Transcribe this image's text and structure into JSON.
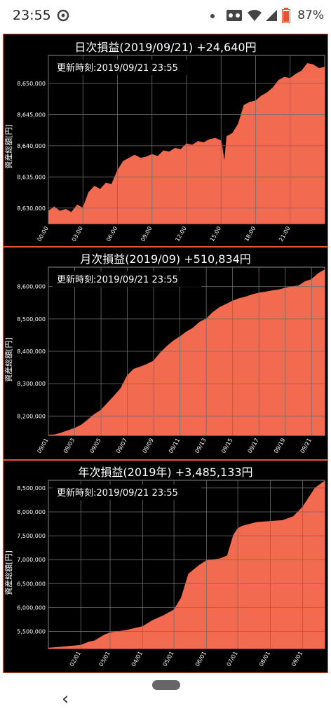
{
  "status_bar": {
    "time": "23:55",
    "battery": "87%",
    "icons": [
      "sync-icon",
      "dot-icon",
      "voicemail-icon",
      "wifi-icon",
      "signal-icon",
      "battery-icon"
    ]
  },
  "colors": {
    "fill": "#f26a4f",
    "background": "#000000",
    "grid": "#6f6f6f",
    "border": "#e8532f"
  },
  "chart_data": [
    {
      "type": "area",
      "title": "日次損益(2019/09/21) +24,640円",
      "subtitle": "更新時刻:2019/09/21 23:55",
      "ylabel": "資産総額[円]",
      "xlabel": "",
      "grid": true,
      "ylim": [
        8627500,
        8654500
      ],
      "yticks": [
        "8,630,000",
        "8,635,000",
        "8,640,000",
        "8,645,000",
        "8,650,000"
      ],
      "ytick_values": [
        8630000,
        8635000,
        8640000,
        8645000,
        8650000
      ],
      "xticks": [
        "00:00",
        "03:00",
        "06:00",
        "09:00",
        "12:00",
        "15:00",
        "18:00",
        "21:00"
      ],
      "x_range_hours": [
        0,
        24
      ],
      "x": [
        0,
        0.5,
        1,
        1.5,
        2,
        2.5,
        3,
        3.5,
        4,
        4.5,
        5,
        5.5,
        6,
        6.5,
        7,
        7.5,
        8,
        8.5,
        9,
        9.5,
        10,
        10.5,
        11,
        11.5,
        12,
        12.5,
        13,
        13.5,
        14,
        14.5,
        15,
        15.3,
        15.5,
        16,
        16.5,
        17,
        17.5,
        18,
        18.5,
        19,
        19.5,
        20,
        20.5,
        21,
        21.5,
        22,
        22.5,
        23,
        23.5,
        24
      ],
      "y": [
        8629500,
        8630200,
        8629500,
        8629800,
        8629300,
        8630500,
        8630000,
        8632500,
        8633500,
        8633000,
        8634000,
        8633800,
        8636000,
        8637500,
        8638000,
        8638500,
        8638000,
        8638200,
        8638600,
        8638300,
        8639200,
        8639000,
        8639600,
        8639400,
        8640300,
        8640100,
        8640700,
        8640500,
        8641000,
        8641200,
        8640800,
        8637200,
        8641500,
        8642000,
        8643500,
        8646500,
        8647000,
        8647200,
        8648000,
        8648500,
        8649300,
        8650500,
        8651000,
        8650800,
        8651500,
        8652000,
        8653200,
        8653000,
        8652400,
        8652600
      ]
    },
    {
      "type": "area",
      "title": "月次損益(2019/09) +510,834円",
      "subtitle": "更新時刻:2019/09/21 23:55",
      "ylabel": "資産総額[円]",
      "xlabel": "",
      "grid": true,
      "ylim": [
        8140000,
        8660000
      ],
      "yticks": [
        "8,200,000",
        "8,300,000",
        "8,400,000",
        "8,500,000",
        "8,600,000"
      ],
      "ytick_values": [
        8200000,
        8300000,
        8400000,
        8500000,
        8600000
      ],
      "xticks": [
        "09/01",
        "09/03",
        "09/05",
        "09/07",
        "09/09",
        "09/11",
        "09/13",
        "09/15",
        "09/17",
        "09/19",
        "09/21"
      ],
      "x_range_days": [
        1,
        22
      ],
      "x": [
        1,
        1.5,
        2,
        2.5,
        3,
        3.5,
        4,
        4.5,
        5,
        5.5,
        6,
        6.5,
        7,
        7.5,
        8,
        8.5,
        9,
        9.5,
        10,
        10.5,
        11,
        11.5,
        12,
        12.5,
        13,
        13.5,
        14,
        14.5,
        15,
        15.5,
        16,
        16.5,
        17,
        17.5,
        18,
        18.5,
        19,
        19.5,
        20,
        20.5,
        21,
        21.5,
        22
      ],
      "y": [
        8141000,
        8142000,
        8148000,
        8155000,
        8162000,
        8172000,
        8188000,
        8205000,
        8218000,
        8240000,
        8262000,
        8285000,
        8325000,
        8345000,
        8352000,
        8360000,
        8370000,
        8395000,
        8415000,
        8432000,
        8445000,
        8460000,
        8472000,
        8490000,
        8500000,
        8520000,
        8535000,
        8545000,
        8555000,
        8563000,
        8568000,
        8575000,
        8580000,
        8583000,
        8587000,
        8590000,
        8595000,
        8600000,
        8602000,
        8615000,
        8622000,
        8640000,
        8652000
      ]
    },
    {
      "type": "area",
      "title": "年次損益(2019年) +3,485,133円",
      "subtitle": "更新時刻:2019/09/21 23:55",
      "ylabel": "資産総額[円]",
      "xlabel": "",
      "grid": true,
      "ylim": [
        5140000,
        8660000
      ],
      "yticks": [
        "5,500,000",
        "6,000,000",
        "6,500,000",
        "7,000,000",
        "7,500,000",
        "8,000,000",
        "8,500,000"
      ],
      "ytick_values": [
        5500000,
        6000000,
        6500000,
        7000000,
        7500000,
        8000000,
        8500000
      ],
      "xticks": [
        "02/01",
        "03/01",
        "04/01",
        "05/01",
        "06/01",
        "07/01",
        "08/01",
        "09/01"
      ],
      "x_range_days": [
        1,
        265
      ],
      "x": [
        1,
        15,
        32,
        40,
        45,
        55,
        60,
        75,
        91,
        100,
        111,
        121,
        128,
        135,
        145,
        152,
        165,
        172,
        178,
        182,
        186,
        200,
        213,
        225,
        235,
        244,
        250,
        256,
        265
      ],
      "y": [
        5150000,
        5175000,
        5210000,
        5280000,
        5300000,
        5430000,
        5470000,
        5520000,
        5600000,
        5720000,
        5830000,
        5950000,
        6200000,
        6700000,
        6880000,
        6980000,
        7020000,
        7080000,
        7520000,
        7650000,
        7700000,
        7780000,
        7800000,
        7820000,
        7900000,
        8100000,
        8300000,
        8500000,
        8640000
      ]
    }
  ]
}
